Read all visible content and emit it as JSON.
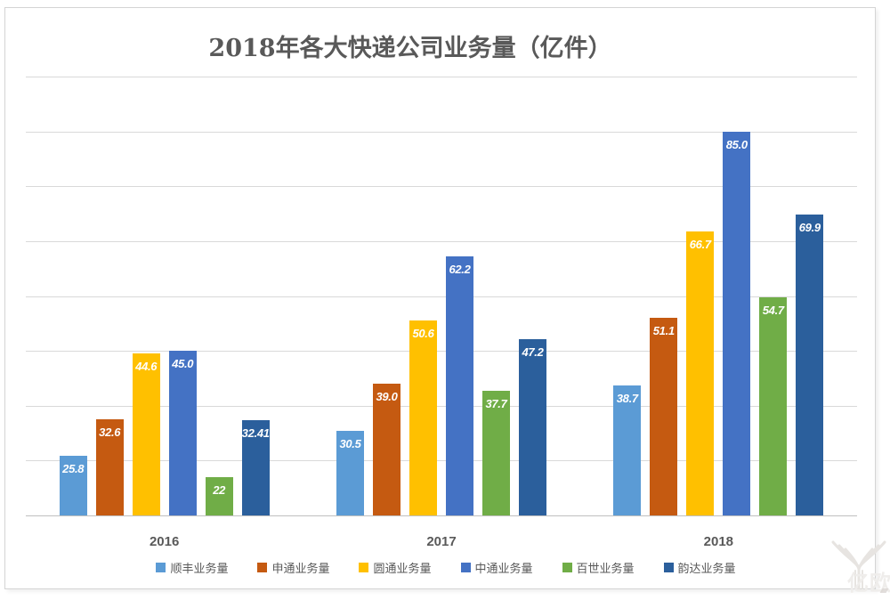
{
  "title": "2018年各大快递公司业务量（亿件）",
  "watermark_text": "亿欧",
  "colors": {
    "title_text": "#595959",
    "axis_text": "#595959",
    "legend_text": "#595959",
    "gridline": "#d9d9d9",
    "baseline": "#c0c0c0",
    "data_label": "#ffffff"
  },
  "chart_data": {
    "type": "bar",
    "title": "2018年各大快递公司业务量（亿件）",
    "categories": [
      "2016",
      "2017",
      "2018"
    ],
    "series": [
      {
        "name": "顺丰业务量",
        "color": "#5B9BD5",
        "values": [
          25.8,
          30.5,
          38.7
        ],
        "labels": [
          "25.8",
          "30.5",
          "38.7"
        ]
      },
      {
        "name": "申通业务量",
        "color": "#C55A11",
        "values": [
          32.6,
          39.0,
          51.1
        ],
        "labels": [
          "32.6",
          "39.0",
          "51.1"
        ]
      },
      {
        "name": "圆通业务量",
        "color": "#FFC000",
        "values": [
          44.6,
          50.6,
          66.7
        ],
        "labels": [
          "44.6",
          "50.6",
          "66.7"
        ]
      },
      {
        "name": "中通业务量",
        "color": "#4472C4",
        "values": [
          45.0,
          62.2,
          85.0
        ],
        "labels": [
          "45.0",
          "62.2",
          "85.0"
        ]
      },
      {
        "name": "百世业务量",
        "color": "#70AD47",
        "values": [
          22,
          37.7,
          54.7
        ],
        "labels": [
          "22",
          "37.7",
          "54.7"
        ]
      },
      {
        "name": "韵达业务量",
        "color": "#2B5F9C",
        "values": [
          32.41,
          47.2,
          69.9
        ],
        "labels": [
          "32.41",
          "47.2",
          "69.9"
        ]
      }
    ],
    "xlabel": "",
    "ylabel": "",
    "ylim": [
      15,
      95
    ],
    "grid_step": 10,
    "gridlines": true,
    "y_axis_labels_visible": false,
    "legend_position": "bottom",
    "data_labels": "inside-top, white bold italic"
  }
}
